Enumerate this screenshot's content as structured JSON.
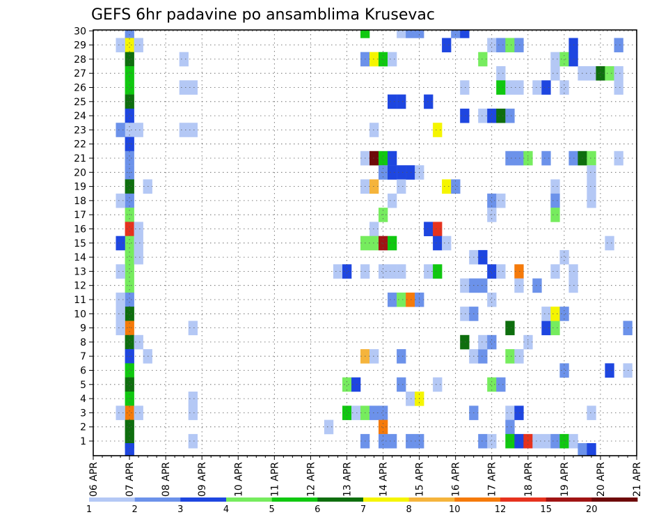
{
  "chart_data": {
    "type": "heatmap",
    "title": "GEFS 6hr padavine po ansamblima Krusevac",
    "xlabel": "",
    "ylabel": "",
    "y_members": [
      1,
      30
    ],
    "y_tick_labels": [
      "1",
      "2",
      "3",
      "4",
      "5",
      "6",
      "7",
      "8",
      "9",
      "10",
      "11",
      "12",
      "13",
      "14",
      "15",
      "16",
      "17",
      "18",
      "19",
      "20",
      "21",
      "22",
      "23",
      "24",
      "25",
      "26",
      "27",
      "28",
      "29",
      "30"
    ],
    "x_range_days": [
      0,
      15
    ],
    "x_tick_labels": [
      "06 APR",
      "07 APR",
      "08 APR",
      "09 APR",
      "10 APR",
      "11 APR",
      "12 APR",
      "13 APR",
      "14 APR",
      "15 APR",
      "16 APR",
      "17 APR",
      "18 APR",
      "19 APR",
      "20 APR",
      "21 APR"
    ],
    "grid": true,
    "legend": {
      "position": "bottom",
      "ticks": [
        "1",
        "2",
        "3",
        "4",
        "5",
        "6",
        "7",
        "8",
        "10",
        "12",
        "15",
        "20"
      ],
      "colors": [
        "#b4c8f5",
        "#6c92ea",
        "#1e46e0",
        "#76ec5e",
        "#10c810",
        "#0e6e0e",
        "#f5f500",
        "#f5b43c",
        "#f57a0a",
        "#e6321e",
        "#a01414",
        "#6e0a0a"
      ]
    },
    "colors_by_class": [
      "#b4c8f5",
      "#6c92ea",
      "#1e46e0",
      "#76ec5e",
      "#10c810",
      "#0e6e0e",
      "#f5f500",
      "#f5b43c",
      "#f57a0a",
      "#e6321e",
      "#a01414",
      "#6e0a0a"
    ],
    "cells": [
      {
        "x": 1.0,
        "y": 30,
        "c": 1
      },
      {
        "x": 1.0,
        "y": 29,
        "c": 6
      },
      {
        "x": 1.0,
        "y": 28,
        "c": 5
      },
      {
        "x": 1.0,
        "y": 27,
        "c": 4
      },
      {
        "x": 1.0,
        "y": 26,
        "c": 4
      },
      {
        "x": 1.0,
        "y": 25,
        "c": 5
      },
      {
        "x": 1.0,
        "y": 24,
        "c": 2
      },
      {
        "x": 1.0,
        "y": 23,
        "c": 0
      },
      {
        "x": 1.0,
        "y": 22,
        "c": 2
      },
      {
        "x": 1.0,
        "y": 21,
        "c": 1
      },
      {
        "x": 1.0,
        "y": 20,
        "c": 1
      },
      {
        "x": 1.0,
        "y": 19,
        "c": 5
      },
      {
        "x": 1.0,
        "y": 18,
        "c": 1
      },
      {
        "x": 1.0,
        "y": 17,
        "c": 3
      },
      {
        "x": 1.0,
        "y": 16,
        "c": 9
      },
      {
        "x": 1.0,
        "y": 15,
        "c": 3
      },
      {
        "x": 1.0,
        "y": 14,
        "c": 3
      },
      {
        "x": 1.0,
        "y": 13,
        "c": 3
      },
      {
        "x": 1.0,
        "y": 12,
        "c": 3
      },
      {
        "x": 1.0,
        "y": 11,
        "c": 1
      },
      {
        "x": 1.0,
        "y": 10,
        "c": 5
      },
      {
        "x": 1.0,
        "y": 9,
        "c": 8
      },
      {
        "x": 1.0,
        "y": 8,
        "c": 5
      },
      {
        "x": 1.0,
        "y": 7,
        "c": 2
      },
      {
        "x": 1.0,
        "y": 6,
        "c": 4
      },
      {
        "x": 1.0,
        "y": 5,
        "c": 5
      },
      {
        "x": 1.0,
        "y": 4,
        "c": 4
      },
      {
        "x": 1.0,
        "y": 3,
        "c": 8
      },
      {
        "x": 1.0,
        "y": 2,
        "c": 5
      },
      {
        "x": 1.0,
        "y": 1,
        "c": 5
      },
      {
        "x": 1.0,
        "y": 0.35,
        "c": 2
      },
      {
        "x": 0.75,
        "y": 29,
        "c": 0
      },
      {
        "x": 1.25,
        "y": 29,
        "c": 0
      },
      {
        "x": 0.75,
        "y": 23,
        "c": 1
      },
      {
        "x": 1.25,
        "y": 23,
        "c": 0
      },
      {
        "x": 0.75,
        "y": 18,
        "c": 0
      },
      {
        "x": 0.75,
        "y": 15,
        "c": 2
      },
      {
        "x": 1.25,
        "y": 15,
        "c": 0
      },
      {
        "x": 1.25,
        "y": 16,
        "c": 0
      },
      {
        "x": 1.25,
        "y": 14,
        "c": 0
      },
      {
        "x": 0.75,
        "y": 13,
        "c": 0
      },
      {
        "x": 0.75,
        "y": 10,
        "c": 0
      },
      {
        "x": 0.75,
        "y": 9,
        "c": 0
      },
      {
        "x": 0.75,
        "y": 11,
        "c": 0
      },
      {
        "x": 1.25,
        "y": 8,
        "c": 0
      },
      {
        "x": 1.5,
        "y": 7,
        "c": 0
      },
      {
        "x": 1.5,
        "y": 19,
        "c": 0
      },
      {
        "x": 0.75,
        "y": 3,
        "c": 0
      },
      {
        "x": 1.25,
        "y": 3,
        "c": 0
      },
      {
        "x": 2.5,
        "y": 28,
        "c": 0
      },
      {
        "x": 2.5,
        "y": 26,
        "c": 0
      },
      {
        "x": 2.75,
        "y": 26,
        "c": 0
      },
      {
        "x": 2.5,
        "y": 23,
        "c": 0
      },
      {
        "x": 2.75,
        "y": 23,
        "c": 0
      },
      {
        "x": 2.75,
        "y": 9,
        "c": 0
      },
      {
        "x": 2.75,
        "y": 4,
        "c": 0
      },
      {
        "x": 2.75,
        "y": 3,
        "c": 0
      },
      {
        "x": 2.75,
        "y": 1,
        "c": 0
      },
      {
        "x": 6.5,
        "y": 2,
        "c": 0
      },
      {
        "x": 6.75,
        "y": 13,
        "c": 0
      },
      {
        "x": 7.0,
        "y": 13,
        "c": 2
      },
      {
        "x": 7.0,
        "y": 5,
        "c": 3
      },
      {
        "x": 7.25,
        "y": 5,
        "c": 2
      },
      {
        "x": 7.0,
        "y": 3,
        "c": 4
      },
      {
        "x": 7.25,
        "y": 3,
        "c": 0
      },
      {
        "x": 7.5,
        "y": 3,
        "c": 3
      },
      {
        "x": 7.75,
        "y": 3,
        "c": 1
      },
      {
        "x": 8.0,
        "y": 3,
        "c": 1
      },
      {
        "x": 7.5,
        "y": 30,
        "c": 4
      },
      {
        "x": 7.5,
        "y": 28,
        "c": 1
      },
      {
        "x": 7.75,
        "y": 28,
        "c": 6
      },
      {
        "x": 8.0,
        "y": 28,
        "c": 4
      },
      {
        "x": 8.25,
        "y": 28,
        "c": 0
      },
      {
        "x": 7.75,
        "y": 23,
        "c": 0
      },
      {
        "x": 7.5,
        "y": 21,
        "c": 0
      },
      {
        "x": 7.75,
        "y": 21,
        "c": 11
      },
      {
        "x": 8.0,
        "y": 21,
        "c": 4
      },
      {
        "x": 8.25,
        "y": 21,
        "c": 2
      },
      {
        "x": 8.0,
        "y": 20,
        "c": 1
      },
      {
        "x": 8.25,
        "y": 20,
        "c": 2
      },
      {
        "x": 8.5,
        "y": 20,
        "c": 2
      },
      {
        "x": 8.75,
        "y": 20,
        "c": 2
      },
      {
        "x": 9.0,
        "y": 20,
        "c": 0
      },
      {
        "x": 7.5,
        "y": 19,
        "c": 0
      },
      {
        "x": 7.75,
        "y": 19,
        "c": 7
      },
      {
        "x": 8.5,
        "y": 19,
        "c": 0
      },
      {
        "x": 8.25,
        "y": 18,
        "c": 0
      },
      {
        "x": 8.0,
        "y": 17,
        "c": 3
      },
      {
        "x": 7.75,
        "y": 16,
        "c": 0
      },
      {
        "x": 7.5,
        "y": 15,
        "c": 3
      },
      {
        "x": 7.75,
        "y": 15,
        "c": 3
      },
      {
        "x": 8.0,
        "y": 15,
        "c": 10
      },
      {
        "x": 8.25,
        "y": 15,
        "c": 4
      },
      {
        "x": 7.5,
        "y": 13,
        "c": 0
      },
      {
        "x": 8.0,
        "y": 13,
        "c": 0
      },
      {
        "x": 8.25,
        "y": 13,
        "c": 0
      },
      {
        "x": 8.5,
        "y": 13,
        "c": 0
      },
      {
        "x": 8.25,
        "y": 11,
        "c": 1
      },
      {
        "x": 8.5,
        "y": 11,
        "c": 3
      },
      {
        "x": 8.75,
        "y": 11,
        "c": 8
      },
      {
        "x": 9.0,
        "y": 11,
        "c": 1
      },
      {
        "x": 7.5,
        "y": 7,
        "c": 7
      },
      {
        "x": 7.75,
        "y": 7,
        "c": 0
      },
      {
        "x": 8.5,
        "y": 7,
        "c": 1
      },
      {
        "x": 8.5,
        "y": 5,
        "c": 1
      },
      {
        "x": 8.75,
        "y": 4,
        "c": 0
      },
      {
        "x": 9.0,
        "y": 4,
        "c": 6
      },
      {
        "x": 8.0,
        "y": 2,
        "c": 8
      },
      {
        "x": 7.5,
        "y": 1,
        "c": 1
      },
      {
        "x": 8.0,
        "y": 1,
        "c": 1
      },
      {
        "x": 8.25,
        "y": 1,
        "c": 1
      },
      {
        "x": 8.75,
        "y": 1,
        "c": 1
      },
      {
        "x": 9.0,
        "y": 1,
        "c": 1
      },
      {
        "x": 8.5,
        "y": 30,
        "c": 0
      },
      {
        "x": 8.75,
        "y": 30,
        "c": 1
      },
      {
        "x": 9.0,
        "y": 30,
        "c": 1
      },
      {
        "x": 8.25,
        "y": 25,
        "c": 2
      },
      {
        "x": 8.5,
        "y": 25,
        "c": 2
      },
      {
        "x": 9.25,
        "y": 25,
        "c": 2
      },
      {
        "x": 9.25,
        "y": 16,
        "c": 2
      },
      {
        "x": 9.5,
        "y": 16,
        "c": 9
      },
      {
        "x": 9.25,
        "y": 13,
        "c": 0
      },
      {
        "x": 9.5,
        "y": 13,
        "c": 4
      },
      {
        "x": 9.5,
        "y": 23,
        "c": 6
      },
      {
        "x": 9.5,
        "y": 15,
        "c": 2
      },
      {
        "x": 9.75,
        "y": 15,
        "c": 0
      },
      {
        "x": 9.75,
        "y": 19,
        "c": 6
      },
      {
        "x": 10.0,
        "y": 19,
        "c": 1
      },
      {
        "x": 9.5,
        "y": 5,
        "c": 0
      },
      {
        "x": 9.75,
        "y": 29,
        "c": 2
      },
      {
        "x": 10.0,
        "y": 30,
        "c": 1
      },
      {
        "x": 10.25,
        "y": 30,
        "c": 2
      },
      {
        "x": 10.25,
        "y": 26,
        "c": 0
      },
      {
        "x": 10.25,
        "y": 24,
        "c": 2
      },
      {
        "x": 10.25,
        "y": 12,
        "c": 0
      },
      {
        "x": 10.5,
        "y": 12,
        "c": 1
      },
      {
        "x": 10.75,
        "y": 12,
        "c": 1
      },
      {
        "x": 10.25,
        "y": 10,
        "c": 0
      },
      {
        "x": 10.5,
        "y": 10,
        "c": 1
      },
      {
        "x": 10.25,
        "y": 8,
        "c": 5
      },
      {
        "x": 10.5,
        "y": 14,
        "c": 0
      },
      {
        "x": 10.75,
        "y": 14,
        "c": 2
      },
      {
        "x": 10.5,
        "y": 3,
        "c": 1
      },
      {
        "x": 10.5,
        "y": 7,
        "c": 0
      },
      {
        "x": 10.75,
        "y": 7,
        "c": 1
      },
      {
        "x": 10.75,
        "y": 8,
        "c": 0
      },
      {
        "x": 11.0,
        "y": 8,
        "c": 1
      },
      {
        "x": 10.75,
        "y": 28,
        "c": 3
      },
      {
        "x": 10.75,
        "y": 24,
        "c": 0
      },
      {
        "x": 11.0,
        "y": 24,
        "c": 2
      },
      {
        "x": 11.25,
        "y": 24,
        "c": 5
      },
      {
        "x": 11.5,
        "y": 24,
        "c": 1
      },
      {
        "x": 10.75,
        "y": 1,
        "c": 1
      },
      {
        "x": 11.0,
        "y": 1,
        "c": 0
      },
      {
        "x": 11.0,
        "y": 29,
        "c": 0
      },
      {
        "x": 11.25,
        "y": 29,
        "c": 1
      },
      {
        "x": 11.5,
        "y": 29,
        "c": 3
      },
      {
        "x": 11.75,
        "y": 29,
        "c": 1
      },
      {
        "x": 11.25,
        "y": 27,
        "c": 0
      },
      {
        "x": 11.25,
        "y": 26,
        "c": 4
      },
      {
        "x": 11.5,
        "y": 26,
        "c": 0
      },
      {
        "x": 11.75,
        "y": 26,
        "c": 0
      },
      {
        "x": 11.0,
        "y": 18,
        "c": 1
      },
      {
        "x": 11.25,
        "y": 18,
        "c": 0
      },
      {
        "x": 11.0,
        "y": 17,
        "c": 0
      },
      {
        "x": 11.0,
        "y": 13,
        "c": 2
      },
      {
        "x": 11.25,
        "y": 13,
        "c": 0
      },
      {
        "x": 11.0,
        "y": 11,
        "c": 0
      },
      {
        "x": 11.0,
        "y": 5,
        "c": 3
      },
      {
        "x": 11.25,
        "y": 5,
        "c": 1
      },
      {
        "x": 11.5,
        "y": 21,
        "c": 1
      },
      {
        "x": 11.75,
        "y": 21,
        "c": 1
      },
      {
        "x": 11.75,
        "y": 13,
        "c": 8
      },
      {
        "x": 11.75,
        "y": 12,
        "c": 0
      },
      {
        "x": 11.5,
        "y": 9,
        "c": 5
      },
      {
        "x": 11.5,
        "y": 7,
        "c": 3
      },
      {
        "x": 11.75,
        "y": 7,
        "c": 0
      },
      {
        "x": 11.5,
        "y": 3,
        "c": 0
      },
      {
        "x": 11.75,
        "y": 3,
        "c": 2
      },
      {
        "x": 11.5,
        "y": 2,
        "c": 1
      },
      {
        "x": 11.5,
        "y": 1,
        "c": 4
      },
      {
        "x": 11.75,
        "y": 1,
        "c": 2
      },
      {
        "x": 12.0,
        "y": 1,
        "c": 9
      },
      {
        "x": 12.25,
        "y": 1,
        "c": 0
      },
      {
        "x": 12.5,
        "y": 1,
        "c": 0
      },
      {
        "x": 12.75,
        "y": 1,
        "c": 1
      },
      {
        "x": 13.0,
        "y": 1,
        "c": 4
      },
      {
        "x": 13.25,
        "y": 1,
        "c": 0
      },
      {
        "x": 12.0,
        "y": 21,
        "c": 3
      },
      {
        "x": 12.0,
        "y": 8,
        "c": 0
      },
      {
        "x": 12.25,
        "y": 12,
        "c": 1
      },
      {
        "x": 12.5,
        "y": 9,
        "c": 2
      },
      {
        "x": 12.75,
        "y": 9,
        "c": 3
      },
      {
        "x": 12.5,
        "y": 10,
        "c": 0
      },
      {
        "x": 12.75,
        "y": 10,
        "c": 6
      },
      {
        "x": 13.0,
        "y": 10,
        "c": 1
      },
      {
        "x": 12.5,
        "y": 21,
        "c": 1
      },
      {
        "x": 12.25,
        "y": 26,
        "c": 0
      },
      {
        "x": 12.5,
        "y": 26,
        "c": 2
      },
      {
        "x": 12.75,
        "y": 19,
        "c": 0
      },
      {
        "x": 12.75,
        "y": 18,
        "c": 1
      },
      {
        "x": 12.75,
        "y": 17,
        "c": 3
      },
      {
        "x": 12.75,
        "y": 13,
        "c": 0
      },
      {
        "x": 12.75,
        "y": 28,
        "c": 0
      },
      {
        "x": 13.0,
        "y": 28,
        "c": 3
      },
      {
        "x": 13.25,
        "y": 28,
        "c": 2
      },
      {
        "x": 12.75,
        "y": 27,
        "c": 0
      },
      {
        "x": 13.25,
        "y": 29,
        "c": 2
      },
      {
        "x": 13.25,
        "y": 21,
        "c": 1
      },
      {
        "x": 13.5,
        "y": 21,
        "c": 5
      },
      {
        "x": 13.75,
        "y": 21,
        "c": 3
      },
      {
        "x": 13.0,
        "y": 26,
        "c": 0
      },
      {
        "x": 13.0,
        "y": 14,
        "c": 0
      },
      {
        "x": 13.25,
        "y": 13,
        "c": 0
      },
      {
        "x": 13.25,
        "y": 12,
        "c": 0
      },
      {
        "x": 13.75,
        "y": 20,
        "c": 0
      },
      {
        "x": 13.75,
        "y": 19,
        "c": 0
      },
      {
        "x": 13.75,
        "y": 18,
        "c": 0
      },
      {
        "x": 13.5,
        "y": 27,
        "c": 0
      },
      {
        "x": 13.75,
        "y": 27,
        "c": 0
      },
      {
        "x": 14.0,
        "y": 27,
        "c": 5
      },
      {
        "x": 14.25,
        "y": 27,
        "c": 3
      },
      {
        "x": 14.5,
        "y": 27,
        "c": 0
      },
      {
        "x": 14.5,
        "y": 26,
        "c": 0
      },
      {
        "x": 14.5,
        "y": 29,
        "c": 1
      },
      {
        "x": 14.5,
        "y": 21,
        "c": 0
      },
      {
        "x": 14.25,
        "y": 15,
        "c": 0
      },
      {
        "x": 14.75,
        "y": 9,
        "c": 1
      },
      {
        "x": 14.25,
        "y": 6,
        "c": 2
      },
      {
        "x": 14.75,
        "y": 6,
        "c": 0
      },
      {
        "x": 13.0,
        "y": 6,
        "c": 1
      },
      {
        "x": 13.75,
        "y": 3,
        "c": 0
      },
      {
        "x": 13.5,
        "y": 0.35,
        "c": 1
      },
      {
        "x": 13.75,
        "y": 0.35,
        "c": 2
      }
    ]
  }
}
